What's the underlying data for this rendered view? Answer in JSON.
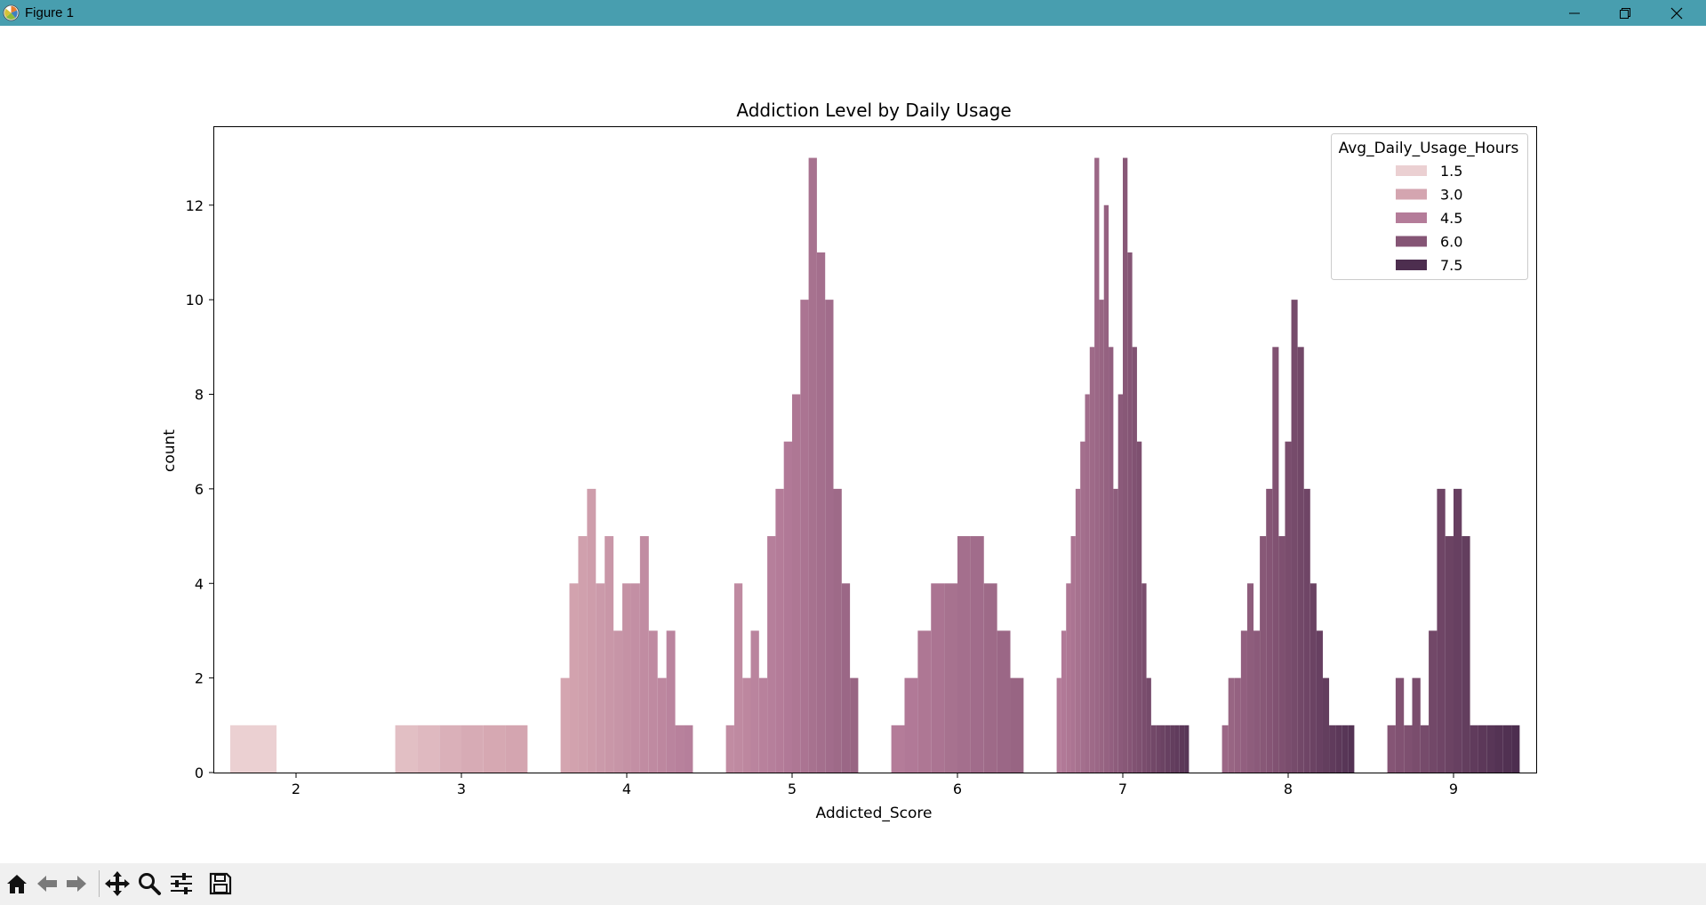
{
  "window": {
    "title": "Figure 1"
  },
  "toolbar": {
    "tools": [
      "home-icon",
      "back-arrow-icon",
      "forward-arrow-icon",
      "pan-icon",
      "zoom-icon",
      "configure-icon",
      "save-icon"
    ]
  },
  "chart_data": {
    "type": "bar",
    "title": "Addiction Level by Daily Usage",
    "xlabel": "Addicted_Score",
    "ylabel": "count",
    "x_ticks": [
      "2",
      "3",
      "4",
      "5",
      "6",
      "7",
      "8",
      "9"
    ],
    "y_ticks": [
      "0",
      "2",
      "4",
      "6",
      "8",
      "10",
      "12"
    ],
    "ylim": [
      0,
      13.65
    ],
    "grid": false,
    "legend": {
      "title": "Avg_Daily_Usage_Hours",
      "placement": "top-right",
      "entries": [
        {
          "label": "1.5",
          "color": "#ebd0d2"
        },
        {
          "label": "3.0",
          "color": "#d4a5b0"
        },
        {
          "label": "4.5",
          "color": "#b47c99"
        },
        {
          "label": "6.0",
          "color": "#855575"
        },
        {
          "label": "7.5",
          "color": "#4d2e4f"
        }
      ]
    },
    "groups": [
      {
        "score": 2,
        "hours": [
          1.5
        ],
        "counts": [
          1
        ]
      },
      {
        "score": 3,
        "hours": [
          2.1,
          2.3,
          2.6,
          2.8,
          2.9,
          3.0
        ],
        "counts": [
          1,
          1,
          1,
          1,
          1,
          1
        ]
      },
      {
        "score": 4,
        "hours": [
          3.0,
          3.1,
          3.2,
          3.3,
          3.4,
          3.5,
          3.6,
          3.7,
          3.8,
          3.9,
          4.0,
          4.1,
          4.2,
          4.3,
          4.4
        ],
        "counts": [
          2,
          4,
          5,
          6,
          4,
          5,
          3,
          4,
          4,
          5,
          3,
          2,
          3,
          1,
          1
        ]
      },
      {
        "score": 5,
        "hours": [
          3.9,
          4.0,
          4.1,
          4.2,
          4.3,
          4.4,
          4.5,
          4.6,
          4.7,
          4.8,
          4.9,
          5.0,
          5.1,
          5.2,
          5.3,
          5.4
        ],
        "counts": [
          1,
          4,
          2,
          3,
          2,
          5,
          6,
          7,
          8,
          10,
          13,
          11,
          10,
          6,
          4,
          2
        ]
      },
      {
        "score": 6,
        "hours": [
          4.5,
          4.6,
          4.7,
          4.8,
          4.9,
          5.0,
          5.1,
          5.2,
          5.3,
          5.4
        ],
        "counts": [
          1,
          2,
          3,
          4,
          4,
          5,
          5,
          4,
          3,
          2
        ]
      },
      {
        "score": 7,
        "hours": [
          4.5,
          4.6,
          4.7,
          4.8,
          4.9,
          5.0,
          5.1,
          5.2,
          5.3,
          5.4,
          5.5,
          5.6,
          5.7,
          5.8,
          5.9,
          6.0,
          6.1,
          6.2,
          6.3,
          6.4,
          6.5,
          6.6,
          6.7,
          6.8,
          6.9,
          7.0,
          7.1,
          7.2
        ],
        "counts": [
          2,
          3,
          4,
          5,
          6,
          7,
          8,
          9,
          13,
          10,
          12,
          9,
          6,
          8,
          13,
          11,
          9,
          7,
          4,
          2,
          1,
          1,
          1,
          1,
          1,
          1,
          1,
          1
        ]
      },
      {
        "score": 8,
        "hours": [
          5.3,
          5.4,
          5.5,
          5.6,
          5.7,
          5.8,
          5.9,
          6.0,
          6.1,
          6.2,
          6.3,
          6.4,
          6.5,
          6.6,
          6.7,
          6.8,
          6.9,
          7.0,
          7.1,
          7.2,
          7.3
        ],
        "counts": [
          1,
          2,
          2,
          3,
          4,
          3,
          5,
          6,
          9,
          5,
          7,
          10,
          9,
          6,
          4,
          3,
          2,
          1,
          1,
          1,
          1
        ]
      },
      {
        "score": 9,
        "hours": [
          6.0,
          6.1,
          6.2,
          6.3,
          6.4,
          6.5,
          6.6,
          6.7,
          6.8,
          6.9,
          7.0,
          7.1,
          7.2,
          7.3,
          7.4,
          7.5
        ],
        "counts": [
          1,
          2,
          1,
          2,
          1,
          3,
          6,
          5,
          6,
          5,
          1,
          1,
          1,
          1,
          1,
          1
        ]
      }
    ],
    "hue_range": [
      1.5,
      7.5
    ]
  }
}
